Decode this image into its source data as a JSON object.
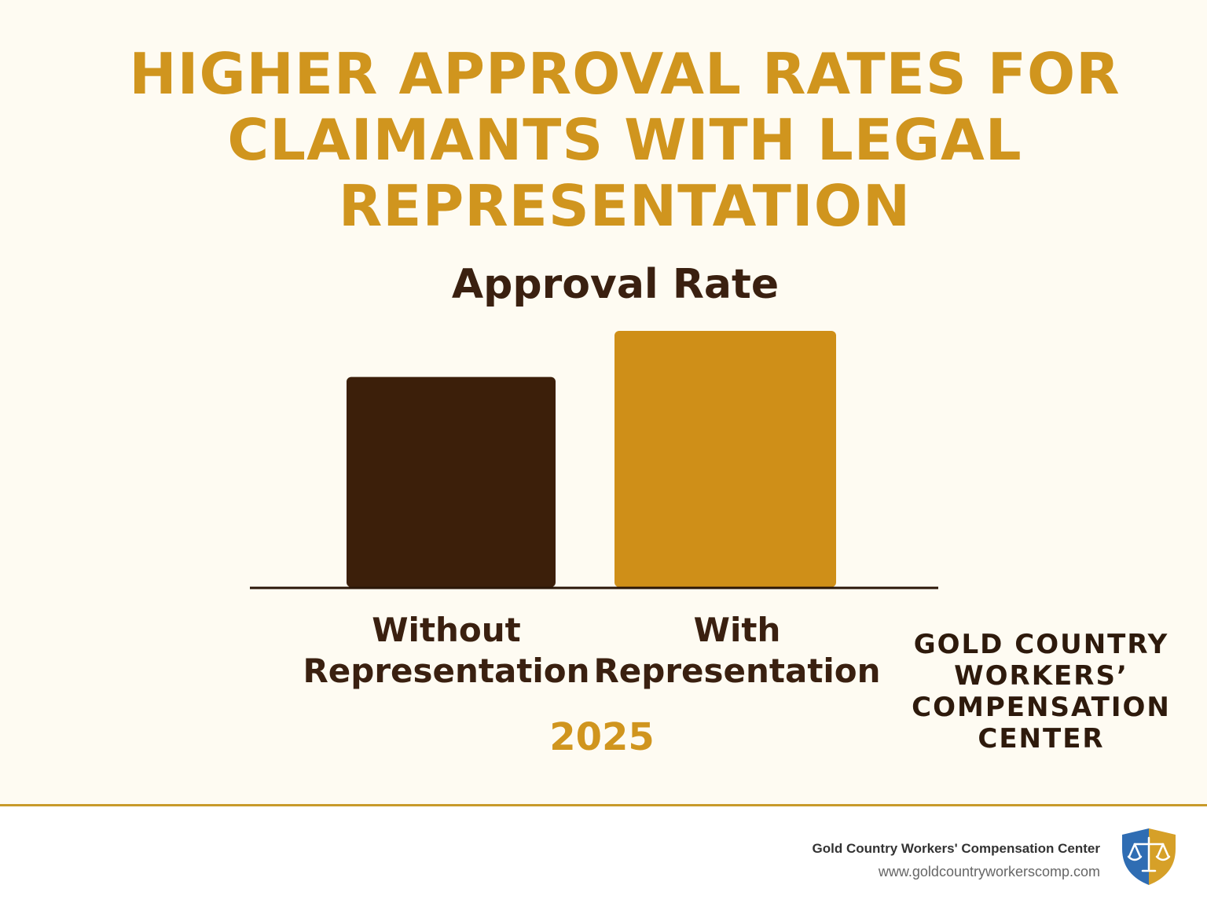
{
  "title": {
    "lines": [
      "HIGHER APPROVAL RATES FOR",
      "CLAIMANTS WITH LEGAL",
      "REPRESENTATION"
    ]
  },
  "chart_data": {
    "type": "bar",
    "title": "Approval Rate",
    "categories": [
      "Without Representation",
      "With Representation"
    ],
    "category_lines": [
      [
        "Without",
        "Representation"
      ],
      [
        "With",
        "Representation"
      ]
    ],
    "values": [
      0.82,
      1.0
    ],
    "colors": [
      "#3c1f0a",
      "#cf8f18"
    ],
    "xlabel": "2025",
    "ylabel": "",
    "grid": false,
    "legend": "none"
  },
  "org": {
    "lines": [
      "GOLD COUNTRY",
      "WORKERS’",
      "COMPENSATION",
      "CENTER"
    ]
  },
  "footer": {
    "name": "Gold Country Workers' Compensation Center",
    "url": "www.goldcountryworkerscomp.com",
    "logo_icon": "shield-scales-icon",
    "logo_colors": [
      "#2f6db3",
      "#d6a028"
    ]
  }
}
